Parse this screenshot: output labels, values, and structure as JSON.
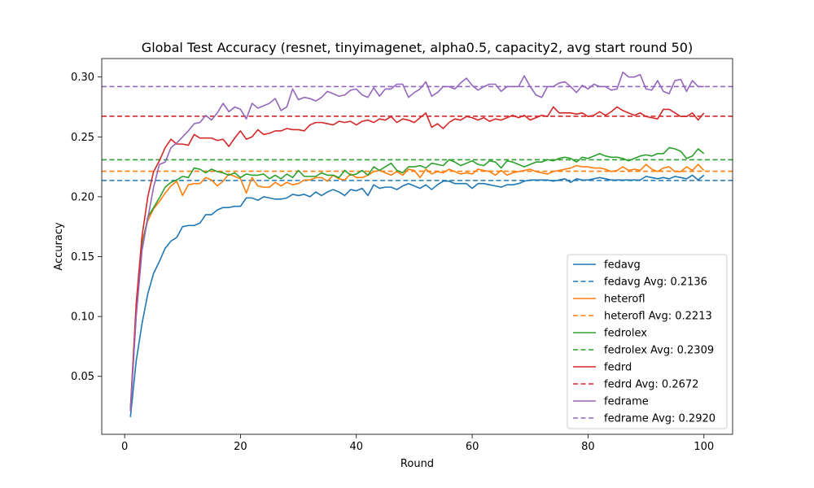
{
  "chart_data": {
    "type": "line",
    "title": "Global Test Accuracy (resnet, tinyimagenet, alpha0.5, capacity2, avg start round 50)",
    "xlabel": "Round",
    "ylabel": "Accuracy",
    "xlim": [
      -3.95,
      104.95
    ],
    "ylim": [
      0.0016,
      0.3154
    ],
    "xticks": [
      0,
      20,
      40,
      60,
      80,
      100
    ],
    "xtick_labels": [
      "0",
      "20",
      "40",
      "60",
      "80",
      "100"
    ],
    "yticks": [
      0.05,
      0.1,
      0.15,
      0.2,
      0.25,
      0.3
    ],
    "ytick_labels": [
      "0.05",
      "0.10",
      "0.15",
      "0.20",
      "0.25",
      "0.30"
    ],
    "legend_position": "lower right",
    "grid": false,
    "x_start": 1,
    "series": [
      {
        "name": "fedavg",
        "avg_label": "fedavg Avg: 0.2136",
        "average": 0.2136,
        "color": "#1f77b4",
        "values": [
          0.016,
          0.063,
          0.094,
          0.119,
          0.136,
          0.146,
          0.157,
          0.163,
          0.166,
          0.175,
          0.176,
          0.176,
          0.178,
          0.185,
          0.185,
          0.189,
          0.191,
          0.191,
          0.192,
          0.192,
          0.199,
          0.199,
          0.197,
          0.2,
          0.199,
          0.198,
          0.198,
          0.199,
          0.202,
          0.201,
          0.202,
          0.2,
          0.204,
          0.201,
          0.204,
          0.206,
          0.204,
          0.201,
          0.206,
          0.205,
          0.207,
          0.201,
          0.21,
          0.207,
          0.208,
          0.208,
          0.206,
          0.209,
          0.211,
          0.209,
          0.207,
          0.21,
          0.206,
          0.21,
          0.213,
          0.213,
          0.211,
          0.211,
          0.211,
          0.207,
          0.211,
          0.211,
          0.21,
          0.209,
          0.208,
          0.21,
          0.21,
          0.211,
          0.213,
          0.214,
          0.214,
          0.214,
          0.214,
          0.213,
          0.214,
          0.215,
          0.212,
          0.215,
          0.214,
          0.214,
          0.215,
          0.216,
          0.215,
          0.214,
          0.214,
          0.214,
          0.214,
          0.214,
          0.214,
          0.217,
          0.216,
          0.215,
          0.216,
          0.215,
          0.217,
          0.216,
          0.215,
          0.218,
          0.214,
          0.218
        ]
      },
      {
        "name": "heterofl",
        "avg_label": "heterofl Avg: 0.2213",
        "average": 0.2213,
        "color": "#ff7f0e",
        "values": [
          0.021,
          0.102,
          0.163,
          0.18,
          0.19,
          0.196,
          0.203,
          0.209,
          0.213,
          0.201,
          0.21,
          0.211,
          0.211,
          0.216,
          0.214,
          0.209,
          0.213,
          0.219,
          0.217,
          0.215,
          0.203,
          0.216,
          0.209,
          0.208,
          0.208,
          0.212,
          0.209,
          0.212,
          0.21,
          0.211,
          0.214,
          0.214,
          0.216,
          0.216,
          0.213,
          0.218,
          0.215,
          0.214,
          0.219,
          0.216,
          0.216,
          0.218,
          0.221,
          0.222,
          0.22,
          0.218,
          0.221,
          0.218,
          0.223,
          0.222,
          0.216,
          0.223,
          0.219,
          0.221,
          0.22,
          0.223,
          0.221,
          0.219,
          0.22,
          0.219,
          0.223,
          0.222,
          0.221,
          0.218,
          0.222,
          0.218,
          0.22,
          0.221,
          0.222,
          0.223,
          0.221,
          0.22,
          0.219,
          0.221,
          0.222,
          0.223,
          0.224,
          0.226,
          0.225,
          0.225,
          0.224,
          0.224,
          0.223,
          0.221,
          0.222,
          0.225,
          0.222,
          0.223,
          0.222,
          0.227,
          0.223,
          0.221,
          0.224,
          0.225,
          0.221,
          0.221,
          0.225,
          0.222,
          0.227,
          0.222
        ]
      },
      {
        "name": "fedrolex",
        "avg_label": "fedrolex Avg: 0.2309",
        "average": 0.2309,
        "color": "#2ca02c",
        "values": [
          0.021,
          0.104,
          0.158,
          0.183,
          0.191,
          0.199,
          0.208,
          0.212,
          0.214,
          0.217,
          0.216,
          0.224,
          0.223,
          0.22,
          0.223,
          0.221,
          0.22,
          0.218,
          0.22,
          0.216,
          0.219,
          0.218,
          0.218,
          0.219,
          0.215,
          0.218,
          0.215,
          0.219,
          0.216,
          0.222,
          0.217,
          0.217,
          0.217,
          0.22,
          0.218,
          0.218,
          0.216,
          0.222,
          0.218,
          0.219,
          0.222,
          0.218,
          0.225,
          0.222,
          0.225,
          0.228,
          0.222,
          0.22,
          0.225,
          0.225,
          0.226,
          0.224,
          0.228,
          0.227,
          0.226,
          0.231,
          0.229,
          0.226,
          0.228,
          0.23,
          0.227,
          0.226,
          0.23,
          0.229,
          0.224,
          0.23,
          0.229,
          0.227,
          0.225,
          0.227,
          0.229,
          0.229,
          0.231,
          0.23,
          0.232,
          0.233,
          0.232,
          0.229,
          0.233,
          0.232,
          0.234,
          0.236,
          0.234,
          0.233,
          0.233,
          0.232,
          0.23,
          0.232,
          0.234,
          0.235,
          0.234,
          0.236,
          0.236,
          0.241,
          0.24,
          0.238,
          0.232,
          0.234,
          0.24,
          0.236
        ]
      },
      {
        "name": "fedrd",
        "avg_label": "fedrd Avg: 0.2672",
        "average": 0.2672,
        "color": "#d62728",
        "values": [
          0.023,
          0.111,
          0.167,
          0.2,
          0.221,
          0.23,
          0.241,
          0.248,
          0.244,
          0.244,
          0.243,
          0.252,
          0.249,
          0.249,
          0.249,
          0.247,
          0.248,
          0.242,
          0.249,
          0.255,
          0.248,
          0.25,
          0.256,
          0.252,
          0.253,
          0.255,
          0.255,
          0.257,
          0.256,
          0.256,
          0.255,
          0.26,
          0.262,
          0.262,
          0.261,
          0.26,
          0.263,
          0.262,
          0.263,
          0.26,
          0.263,
          0.264,
          0.262,
          0.265,
          0.264,
          0.267,
          0.262,
          0.265,
          0.264,
          0.262,
          0.266,
          0.27,
          0.258,
          0.261,
          0.257,
          0.262,
          0.265,
          0.264,
          0.267,
          0.266,
          0.264,
          0.266,
          0.263,
          0.265,
          0.264,
          0.266,
          0.268,
          0.266,
          0.268,
          0.264,
          0.266,
          0.268,
          0.267,
          0.275,
          0.27,
          0.27,
          0.27,
          0.269,
          0.27,
          0.267,
          0.268,
          0.271,
          0.268,
          0.271,
          0.275,
          0.272,
          0.27,
          0.268,
          0.27,
          0.267,
          0.266,
          0.265,
          0.273,
          0.273,
          0.27,
          0.267,
          0.267,
          0.27,
          0.264,
          0.27
        ]
      },
      {
        "name": "fedrame",
        "avg_label": "fedrame Avg: 0.2920",
        "average": 0.292,
        "color": "#9467bd",
        "values": [
          0.021,
          0.1,
          0.155,
          0.182,
          0.208,
          0.227,
          0.229,
          0.241,
          0.245,
          0.25,
          0.255,
          0.261,
          0.262,
          0.268,
          0.264,
          0.27,
          0.278,
          0.271,
          0.275,
          0.273,
          0.265,
          0.278,
          0.274,
          0.276,
          0.278,
          0.282,
          0.272,
          0.275,
          0.29,
          0.281,
          0.283,
          0.282,
          0.28,
          0.283,
          0.288,
          0.286,
          0.284,
          0.285,
          0.289,
          0.29,
          0.285,
          0.283,
          0.291,
          0.284,
          0.29,
          0.29,
          0.294,
          0.294,
          0.283,
          0.287,
          0.29,
          0.296,
          0.284,
          0.287,
          0.292,
          0.292,
          0.29,
          0.295,
          0.299,
          0.293,
          0.289,
          0.292,
          0.294,
          0.294,
          0.288,
          0.292,
          0.292,
          0.292,
          0.301,
          0.292,
          0.285,
          0.283,
          0.292,
          0.292,
          0.295,
          0.296,
          0.292,
          0.287,
          0.293,
          0.29,
          0.294,
          0.292,
          0.292,
          0.289,
          0.29,
          0.304,
          0.3,
          0.3,
          0.302,
          0.29,
          0.289,
          0.297,
          0.288,
          0.286,
          0.297,
          0.298,
          0.288,
          0.297,
          0.292,
          0.292
        ]
      }
    ]
  }
}
